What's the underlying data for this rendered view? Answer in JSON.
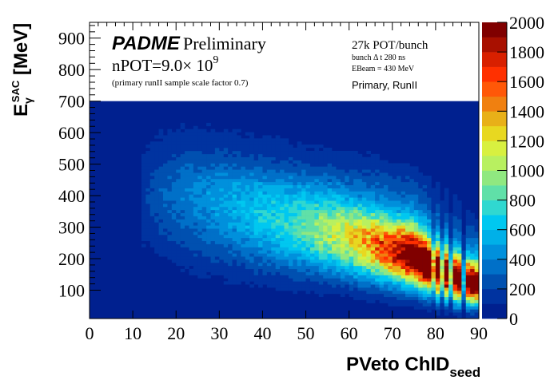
{
  "chart_data": {
    "type": "heatmap",
    "title": "",
    "xlabel": "PVeto ChID",
    "xlabel_subscript": "seed",
    "ylabel_main": "E",
    "ylabel_sub": "γ",
    "ylabel_sup": "SAC",
    "ylabel_unit": " [MeV]",
    "xlim": [
      0,
      90
    ],
    "ylim": [
      10,
      950
    ],
    "zlim": [
      0,
      2000
    ],
    "data_ylim_filled": 700,
    "x_ticks": [
      0,
      10,
      20,
      30,
      40,
      50,
      60,
      70,
      80,
      90
    ],
    "y_ticks": [
      100,
      200,
      300,
      400,
      500,
      600,
      700,
      800,
      900
    ],
    "z_ticks": [
      0,
      200,
      400,
      600,
      800,
      1000,
      1200,
      1400,
      1600,
      1800,
      2000
    ],
    "x_tick_labels": [
      "0",
      "10",
      "20",
      "30",
      "40",
      "50",
      "60",
      "70",
      "80",
      "90"
    ],
    "y_tick_labels": [
      "100",
      "200",
      "300",
      "400",
      "500",
      "600",
      "700",
      "800",
      "900"
    ],
    "z_tick_labels": [
      "0",
      "200",
      "400",
      "600",
      "800",
      "1000",
      "1200",
      "1400",
      "1600",
      "1800",
      "2000"
    ],
    "palette": [
      "#00208f",
      "#0033a0",
      "#0050b0",
      "#0070c8",
      "#0090dc",
      "#00b0e8",
      "#00c8f0",
      "#30d8d0",
      "#60e0a8",
      "#90e880",
      "#b8f060",
      "#d8f040",
      "#e8d820",
      "#e8b018",
      "#f08010",
      "#ff5808",
      "#ff3000",
      "#d82000",
      "#a81000",
      "#800000"
    ],
    "ridge": {
      "description_points_x": [
        12,
        20,
        30,
        40,
        50,
        60,
        70,
        75,
        80,
        85,
        90
      ],
      "peak_energy_mev": [
        390,
        380,
        350,
        320,
        290,
        260,
        220,
        200,
        160,
        130,
        110
      ],
      "peak_counts": [
        120,
        250,
        380,
        520,
        700,
        1000,
        1500,
        2000,
        2000,
        2000,
        2000
      ]
    },
    "legend": "none"
  },
  "annotations": {
    "brand": "PADME",
    "preliminary": "Preliminary",
    "npot_prefix": "nPOT=9.0× 10",
    "npot_exp": "9",
    "sample_note": "(primary runII sample scale factor 0.7)",
    "pot_bunch": "27k POT/bunch",
    "bunch_dt": "bunch  Δ t 280 ns",
    "ebeam": "EBeam = 430 MeV",
    "run_label": "Primary, RunII"
  },
  "colors": {
    "background": "#ffffff",
    "empty_bins": "#00208f"
  }
}
